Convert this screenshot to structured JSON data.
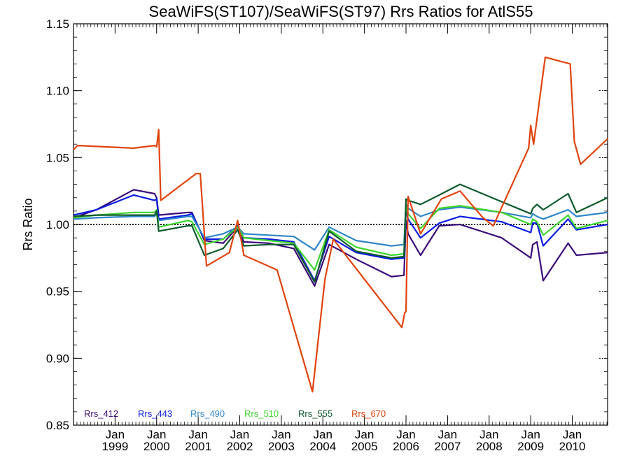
{
  "chart_data": {
    "type": "line",
    "title": "SeaWiFS(ST107)/SeaWiFS(ST97)  Rrs Ratios for AtlS55",
    "xlabel": "",
    "ylabel": "Rrs Ratio",
    "xlim": [
      1998.0,
      2010.85
    ],
    "ylim": [
      0.85,
      1.15
    ],
    "yticks": [
      0.85,
      0.9,
      0.95,
      1.0,
      1.05,
      1.1,
      1.15
    ],
    "ytick_labels": [
      "0.85",
      "0.90",
      "0.95",
      "1.00",
      "1.05",
      "1.10",
      "1.15"
    ],
    "xticks": [
      1999,
      2000,
      2001,
      2002,
      2003,
      2004,
      2005,
      2006,
      2007,
      2008,
      2009,
      2010
    ],
    "xtick_labels": [
      {
        "month": "Jan",
        "year": "1999"
      },
      {
        "month": "Jan",
        "year": "2000"
      },
      {
        "month": "Jan",
        "year": "2001"
      },
      {
        "month": "Jan",
        "year": "2002"
      },
      {
        "month": "Jan",
        "year": "2003"
      },
      {
        "month": "Jan",
        "year": "2004"
      },
      {
        "month": "Jan",
        "year": "2005"
      },
      {
        "month": "Jan",
        "year": "2006"
      },
      {
        "month": "Jan",
        "year": "2007"
      },
      {
        "month": "Jan",
        "year": "2008"
      },
      {
        "month": "Jan",
        "year": "2009"
      },
      {
        "month": "Jan",
        "year": "2010"
      }
    ],
    "reference_line": 1.0,
    "legend_placement": "bottom-left",
    "series": [
      {
        "name": "Rrs_412",
        "color": "#3b0a7a",
        "x": [
          1998.0,
          1998.55,
          1999.45,
          1999.95,
          2000.0,
          2000.05,
          2000.75,
          2000.85,
          2001.15,
          2001.6,
          2001.95,
          2002.1,
          2002.7,
          2003.3,
          2003.8,
          2004.15,
          2004.8,
          2005.65,
          2005.95,
          2006.0,
          2006.05,
          2006.35,
          2006.8,
          2007.3,
          2008.3,
          2009.0,
          2009.05,
          2009.15,
          2009.3,
          2009.9,
          2010.1,
          2010.85
        ],
        "y": [
          1.005,
          1.011,
          1.026,
          1.023,
          1.02,
          1.007,
          1.009,
          1.009,
          0.988,
          0.986,
          0.998,
          0.987,
          0.986,
          0.982,
          0.954,
          0.985,
          0.974,
          0.961,
          0.962,
          1.003,
          0.993,
          0.977,
          0.999,
          1.0,
          0.99,
          0.975,
          0.985,
          0.987,
          0.958,
          0.986,
          0.977,
          0.979
        ]
      },
      {
        "name": "Rrs_443",
        "color": "#0b1de0",
        "x": [
          1998.0,
          1998.55,
          1999.45,
          1999.95,
          2000.0,
          2000.05,
          2000.75,
          2000.85,
          2001.15,
          2001.6,
          2001.95,
          2002.1,
          2002.7,
          2003.3,
          2003.8,
          2004.15,
          2004.8,
          2005.65,
          2005.95,
          2006.0,
          2006.05,
          2006.35,
          2006.8,
          2007.3,
          2008.3,
          2009.0,
          2009.05,
          2009.15,
          2009.3,
          2009.9,
          2010.1,
          2010.85
        ],
        "y": [
          1.007,
          1.011,
          1.022,
          1.018,
          1.019,
          1.004,
          1.007,
          1.008,
          0.989,
          0.989,
          0.999,
          0.99,
          0.989,
          0.987,
          0.958,
          0.991,
          0.979,
          0.974,
          0.975,
          1.01,
          1.004,
          0.99,
          1.001,
          1.006,
          1.002,
          0.994,
          1.001,
          1.001,
          0.984,
          1.004,
          0.996,
          1.0
        ]
      },
      {
        "name": "Rrs_490",
        "color": "#2e86c8",
        "x": [
          1998.0,
          1998.55,
          1999.45,
          1999.95,
          2000.0,
          2000.05,
          2000.75,
          2000.85,
          2001.15,
          2001.6,
          2001.95,
          2002.1,
          2002.7,
          2003.3,
          2003.8,
          2004.15,
          2004.8,
          2005.65,
          2005.95,
          2006.0,
          2006.05,
          2006.35,
          2006.8,
          2007.3,
          2008.3,
          2009.0,
          2009.05,
          2009.15,
          2009.3,
          2009.9,
          2010.1,
          2010.85
        ],
        "y": [
          1.004,
          1.005,
          1.006,
          1.006,
          1.008,
          1.003,
          1.006,
          1.006,
          0.99,
          0.993,
          0.998,
          0.993,
          0.992,
          0.991,
          0.981,
          0.998,
          0.988,
          0.984,
          0.985,
          1.015,
          1.012,
          1.006,
          1.011,
          1.013,
          1.009,
          1.005,
          1.008,
          1.006,
          1.004,
          1.011,
          1.006,
          1.009
        ]
      },
      {
        "name": "Rrs_510",
        "color": "#3ed62e",
        "x": [
          1998.0,
          1998.55,
          1999.45,
          1999.95,
          2000.0,
          2000.05,
          2000.75,
          2000.85,
          2001.15,
          2001.6,
          2001.95,
          2002.1,
          2002.7,
          2003.3,
          2003.8,
          2004.15,
          2004.8,
          2005.65,
          2005.95,
          2006.0,
          2006.05,
          2006.35,
          2006.8,
          2007.3,
          2008.3,
          2009.0,
          2009.05,
          2009.15,
          2009.3,
          2009.9,
          2010.1,
          2010.85
        ],
        "y": [
          1.005,
          1.007,
          1.009,
          1.009,
          1.011,
          0.998,
          1.003,
          1.002,
          0.985,
          0.989,
          0.998,
          0.99,
          0.988,
          0.986,
          0.966,
          0.996,
          0.983,
          0.977,
          0.978,
          1.013,
          1.008,
          0.997,
          1.012,
          1.014,
          1.009,
          1.0,
          1.004,
          1.002,
          0.992,
          1.007,
          0.997,
          1.003
        ]
      },
      {
        "name": "Rrs_555",
        "color": "#0c5a2c",
        "x": [
          1998.0,
          1998.55,
          1999.45,
          1999.95,
          2000.0,
          2000.05,
          2000.75,
          2000.85,
          2001.15,
          2001.6,
          2001.95,
          2002.1,
          2002.7,
          2003.3,
          2003.8,
          2004.15,
          2004.8,
          2005.65,
          2005.95,
          2006.0,
          2006.05,
          2006.35,
          2006.8,
          2007.3,
          2008.3,
          2009.0,
          2009.05,
          2009.15,
          2009.3,
          2009.9,
          2010.1,
          2010.85
        ],
        "y": [
          1.006,
          1.007,
          1.007,
          1.007,
          1.01,
          0.995,
          0.999,
          0.999,
          0.977,
          0.982,
          0.996,
          0.984,
          0.985,
          0.985,
          0.957,
          0.995,
          0.98,
          0.975,
          0.976,
          1.019,
          1.018,
          1.015,
          1.022,
          1.03,
          1.017,
          1.008,
          1.012,
          1.015,
          1.011,
          1.023,
          1.009,
          1.02
        ]
      },
      {
        "name": "Rrs_670",
        "color": "#e0440e",
        "x": [
          1998.0,
          1998.1,
          1999.45,
          1999.95,
          2000.0,
          2000.05,
          2000.1,
          2000.95,
          2001.05,
          2001.2,
          2001.75,
          2001.95,
          2002.1,
          2002.9,
          2003.75,
          2004.05,
          2004.25,
          2005.3,
          2005.9,
          2005.97,
          2006.0,
          2006.05,
          2006.35,
          2006.85,
          2007.3,
          2007.85,
          2008.1,
          2008.95,
          2009.0,
          2009.07,
          2009.35,
          2009.95,
          2010.05,
          2010.2,
          2010.85
        ],
        "y": [
          1.056,
          1.059,
          1.057,
          1.059,
          1.058,
          1.071,
          1.018,
          1.038,
          1.038,
          0.969,
          0.979,
          1.003,
          0.977,
          0.966,
          0.875,
          0.959,
          0.989,
          0.947,
          0.923,
          0.934,
          0.935,
          1.021,
          0.993,
          1.019,
          1.025,
          1.005,
          0.999,
          1.057,
          1.074,
          1.06,
          1.125,
          1.12,
          1.062,
          1.045,
          1.064
        ]
      }
    ]
  }
}
